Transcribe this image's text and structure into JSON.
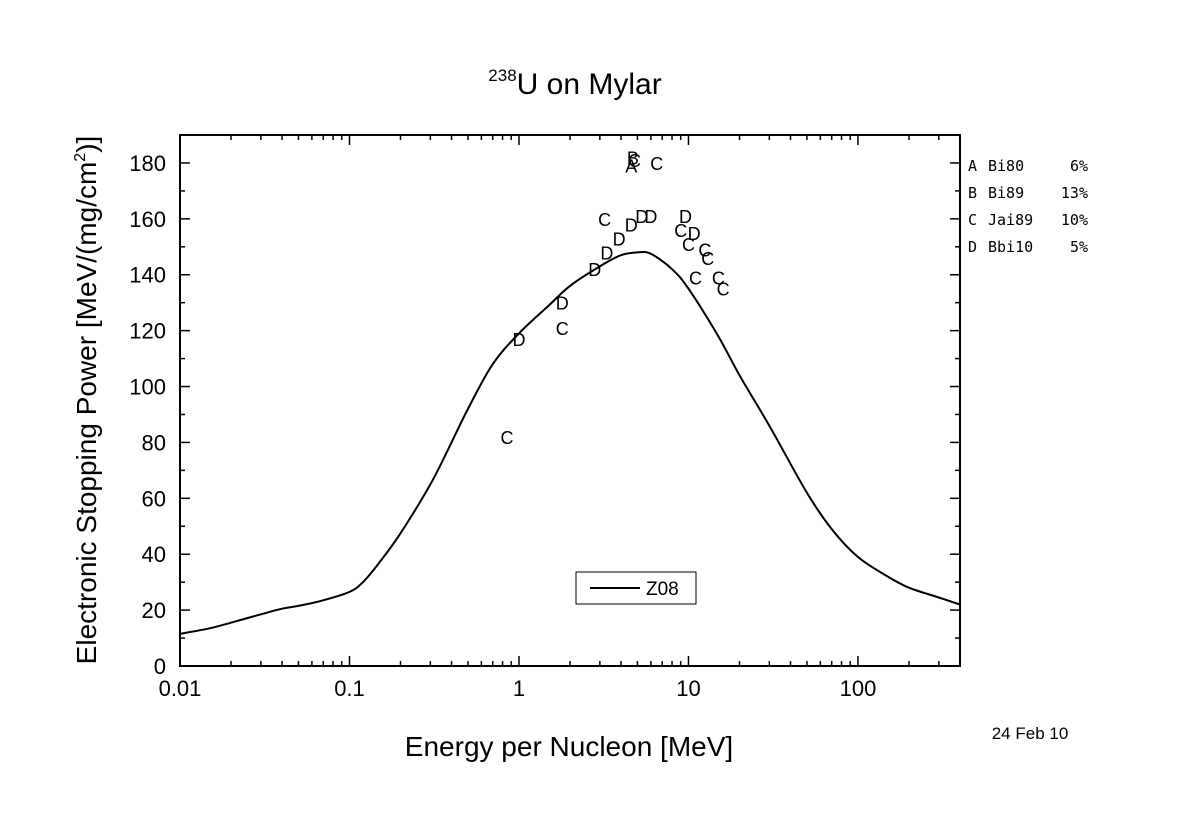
{
  "chart_data": {
    "type": "line",
    "title": {
      "superscript": "238",
      "text": "U on Mylar"
    },
    "xlabel": "Energy per Nucleon [MeV]",
    "ylabel": {
      "before": "Electronic Stopping Power [MeV/(mg/cm",
      "superscript": "2",
      "after": ")]"
    },
    "xscale": "log",
    "xlim": [
      0.01,
      400
    ],
    "ylim": [
      0,
      190
    ],
    "xticks": [
      {
        "value": 0.01,
        "label": "0.01"
      },
      {
        "value": 0.1,
        "label": "0.1"
      },
      {
        "value": 1,
        "label": "1"
      },
      {
        "value": 10,
        "label": "10"
      },
      {
        "value": 100,
        "label": "100"
      }
    ],
    "yticks": [
      0,
      20,
      40,
      60,
      80,
      100,
      120,
      140,
      160,
      180
    ],
    "series": [
      {
        "name": "Z08",
        "style": "line",
        "x": [
          0.01,
          0.015,
          0.02,
          0.03,
          0.04,
          0.05,
          0.07,
          0.1,
          0.12,
          0.15,
          0.2,
          0.3,
          0.4,
          0.5,
          0.7,
          1,
          1.5,
          2,
          3,
          4,
          5,
          6,
          8,
          10,
          15,
          20,
          30,
          50,
          70,
          100,
          150,
          200,
          300,
          400
        ],
        "y": [
          11.5,
          13.5,
          15.5,
          18.5,
          20.5,
          21.5,
          23.5,
          26.5,
          30,
          37,
          47.5,
          65,
          80,
          92,
          108,
          119,
          129,
          136,
          143,
          147,
          148,
          147.5,
          142,
          135,
          118,
          104,
          86,
          62,
          49,
          39,
          32,
          28,
          24.5,
          22
        ]
      },
      {
        "name": "A",
        "style": "letters",
        "x": [
          4.6
        ],
        "y": [
          179
        ]
      },
      {
        "name": "B",
        "style": "letters",
        "x": [
          4.7
        ],
        "y": [
          182
        ]
      },
      {
        "name": "C",
        "style": "letters",
        "x": [
          0.85,
          1.8,
          3.2,
          4.8,
          6.5,
          9,
          10,
          11,
          12.5,
          13,
          15,
          16
        ],
        "y": [
          82,
          121,
          160,
          181,
          180,
          156,
          151,
          139,
          149,
          146,
          139,
          135
        ]
      },
      {
        "name": "D",
        "style": "letters",
        "x": [
          1,
          1.8,
          2.8,
          3.3,
          3.9,
          4.6,
          5.3,
          6,
          9.6,
          10.8
        ],
        "y": [
          117,
          130,
          142,
          148,
          153,
          158,
          161,
          161,
          161,
          155
        ]
      }
    ],
    "letter_key": [
      {
        "letter": "A",
        "ref": "Bi80",
        "err": "6%"
      },
      {
        "letter": "B",
        "ref": "Bi89",
        "err": "13%"
      },
      {
        "letter": "C",
        "ref": "Jai89",
        "err": "10%"
      },
      {
        "letter": "D",
        "ref": "Bbi10",
        "err": "5%"
      }
    ],
    "legend": {
      "label": "Z08",
      "placement": "bottom-center"
    },
    "date": "24 Feb 10",
    "grid": false
  }
}
